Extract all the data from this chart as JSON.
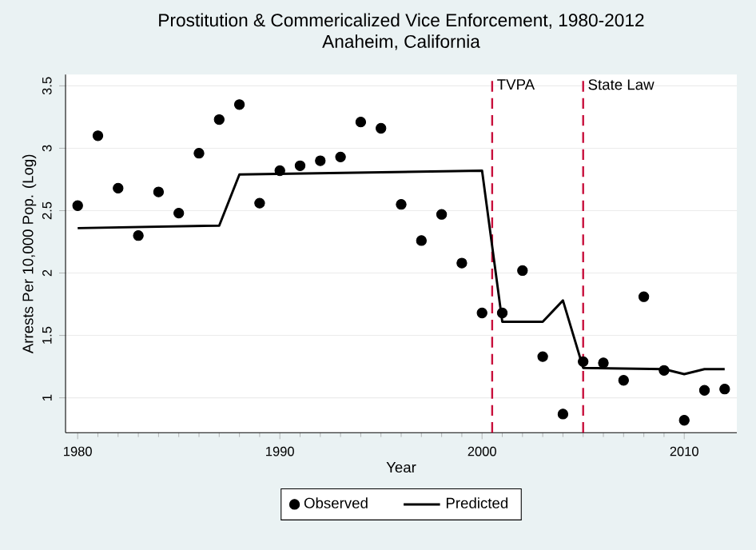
{
  "chart_data": {
    "type": "line",
    "title": "Prostitution & Commericalized Vice Enforcement, 1980-2012",
    "subtitle": "Anaheim, California",
    "xlabel": "Year",
    "ylabel": "Arrests Per 10,000 Pop. (Log)",
    "xlim": [
      1979.4,
      2012.6
    ],
    "ylim": [
      0.72,
      3.59
    ],
    "xticks": [
      1980,
      1990,
      2000,
      2010
    ],
    "yticks": [
      1,
      1.5,
      2,
      2.5,
      3,
      3.5
    ],
    "grid": "y",
    "legend": "bottom",
    "series": [
      {
        "name": "Observed",
        "type": "scatter",
        "marker": "circle",
        "color": "#000000",
        "x": [
          1980,
          1981,
          1982,
          1983,
          1984,
          1985,
          1986,
          1987,
          1988,
          1989,
          1990,
          1991,
          1992,
          1993,
          1994,
          1995,
          1996,
          1997,
          1998,
          1999,
          2000,
          2001,
          2002,
          2003,
          2004,
          2005,
          2006,
          2007,
          2008,
          2009,
          2010,
          2011,
          2012
        ],
        "values": [
          2.54,
          3.1,
          2.68,
          2.3,
          2.65,
          2.48,
          2.96,
          3.23,
          3.35,
          2.56,
          2.82,
          2.86,
          2.9,
          2.93,
          3.21,
          3.16,
          2.55,
          2.26,
          2.47,
          2.08,
          1.68,
          1.68,
          2.02,
          1.33,
          0.87,
          1.29,
          1.28,
          1.14,
          1.81,
          1.22,
          0.82,
          1.06,
          1.07
        ]
      },
      {
        "name": "Predicted",
        "marker": "none",
        "line_style": "solid",
        "color": "#000000",
        "x": [
          1980,
          1987,
          1988,
          2000,
          2001,
          2003,
          2004,
          2005,
          2009,
          2010,
          2011,
          2012
        ],
        "values": [
          2.36,
          2.38,
          2.79,
          2.82,
          1.61,
          1.61,
          1.78,
          1.24,
          1.23,
          1.19,
          1.23,
          1.23
        ]
      }
    ],
    "ref_lines": [
      {
        "axis": "x",
        "value": 2000.5,
        "label": "TVPA",
        "color": "#c8103c",
        "line_style": "dashed"
      },
      {
        "axis": "x",
        "value": 2005,
        "label": "State Law",
        "color": "#c8103c",
        "line_style": "dashed"
      }
    ]
  }
}
